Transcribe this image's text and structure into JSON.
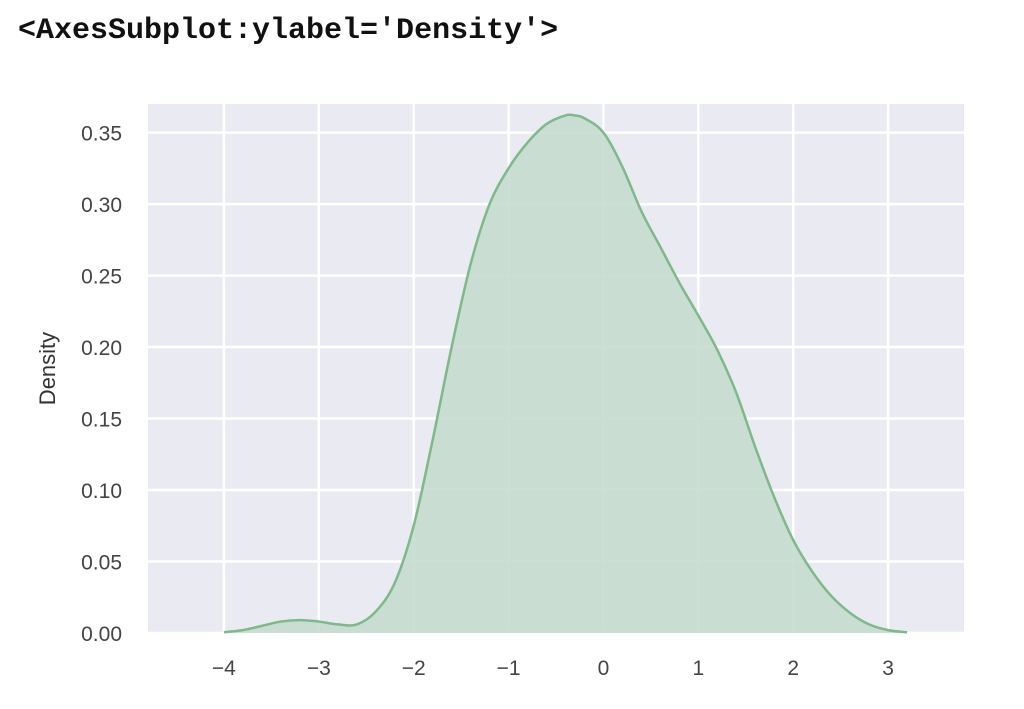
{
  "cell_output": {
    "repr_text": "<AxesSubplot:ylabel='Density'>"
  },
  "colors": {
    "plot_background": "#eaeaf2",
    "grid": "#ffffff",
    "line": "#7fb88a",
    "fill": "#c5dccf"
  },
  "chart_data": {
    "type": "area",
    "xlabel": "",
    "ylabel": "Density",
    "xlim": [
      -4.8,
      3.8
    ],
    "ylim": [
      0,
      0.37
    ],
    "xticks": [
      -4,
      -3,
      -2,
      -1,
      0,
      1,
      2,
      3
    ],
    "xtick_labels": [
      "−4",
      "−3",
      "−2",
      "−1",
      "0",
      "1",
      "2",
      "3"
    ],
    "yticks": [
      0.0,
      0.05,
      0.1,
      0.15,
      0.2,
      0.25,
      0.3,
      0.35
    ],
    "ytick_labels": [
      "0.00",
      "0.05",
      "0.10",
      "0.15",
      "0.20",
      "0.25",
      "0.30",
      "0.35"
    ],
    "grid": true,
    "x": [
      -4.0,
      -3.8,
      -3.6,
      -3.4,
      -3.2,
      -3.0,
      -2.8,
      -2.6,
      -2.4,
      -2.2,
      -2.0,
      -1.8,
      -1.6,
      -1.4,
      -1.2,
      -1.0,
      -0.8,
      -0.6,
      -0.4,
      -0.3,
      -0.2,
      0.0,
      0.2,
      0.4,
      0.6,
      0.8,
      1.0,
      1.2,
      1.4,
      1.6,
      1.8,
      2.0,
      2.2,
      2.4,
      2.6,
      2.8,
      3.0,
      3.2
    ],
    "y": [
      0.0005,
      0.002,
      0.005,
      0.008,
      0.009,
      0.008,
      0.006,
      0.006,
      0.015,
      0.035,
      0.075,
      0.135,
      0.2,
      0.258,
      0.3,
      0.325,
      0.343,
      0.356,
      0.362,
      0.362,
      0.36,
      0.35,
      0.326,
      0.295,
      0.27,
      0.245,
      0.222,
      0.198,
      0.168,
      0.13,
      0.095,
      0.065,
      0.043,
      0.026,
      0.014,
      0.006,
      0.002,
      0.0005
    ]
  }
}
